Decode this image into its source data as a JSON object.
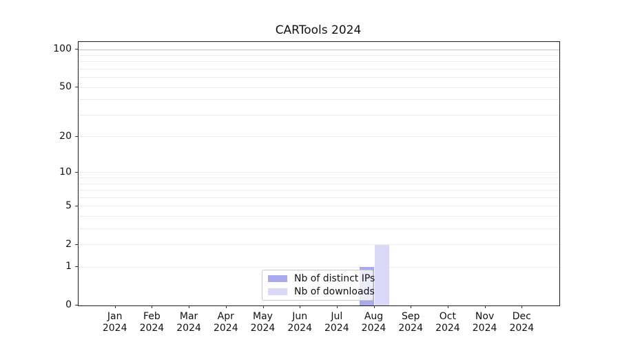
{
  "chart_data": {
    "type": "bar",
    "title": "CARTools 2024",
    "categories": [
      "Jan 2024",
      "Feb 2024",
      "Mar 2024",
      "Apr 2024",
      "May 2024",
      "Jun 2024",
      "Jul 2024",
      "Aug 2024",
      "Sep 2024",
      "Oct 2024",
      "Nov 2024",
      "Dec 2024"
    ],
    "series": [
      {
        "name": "Nb of distinct IPs",
        "color": "#a9a9ee",
        "values": [
          0,
          0,
          0,
          0,
          0,
          0,
          0,
          1,
          0,
          0,
          0,
          0
        ]
      },
      {
        "name": "Nb of downloads",
        "color": "#d9d9f7",
        "values": [
          0,
          0,
          0,
          0,
          0,
          0,
          0,
          2,
          0,
          0,
          0,
          0
        ]
      }
    ],
    "xlabel": "",
    "ylabel": "",
    "y_scale": "log1p",
    "y_ticks": [
      0,
      1,
      2,
      5,
      10,
      20,
      50,
      100
    ],
    "y_minor_gridlines": [
      3,
      4,
      6,
      7,
      8,
      9,
      30,
      40,
      60,
      70,
      80,
      90
    ],
    "ylim": [
      0,
      115
    ],
    "grid": true,
    "legend_position": "lower-center-inside",
    "colors": {
      "grid_minor": "#ececec",
      "grid_top_major": "#c0c0c0",
      "spine": "#1a1a1a",
      "text": "#111111",
      "background": "#ffffff"
    }
  }
}
